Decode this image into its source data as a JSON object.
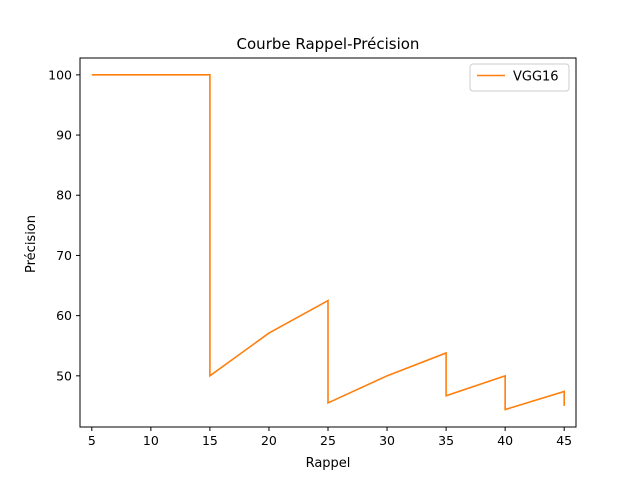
{
  "chart_data": {
    "type": "line",
    "title": "Courbe Rappel-Précision",
    "xlabel": "Rappel",
    "ylabel": "Précision",
    "xlim": [
      4.0,
      46.0
    ],
    "ylim": [
      41.5,
      102.8
    ],
    "xticks": [
      5,
      10,
      15,
      20,
      25,
      30,
      35,
      40,
      45
    ],
    "yticks": [
      50,
      60,
      70,
      80,
      90,
      100
    ],
    "grid": false,
    "legend_position": "upper right",
    "series": [
      {
        "name": "VGG16",
        "color": "#ff7f0e",
        "points": [
          [
            5.0,
            100.0
          ],
          [
            15.0,
            100.0
          ],
          [
            15.0,
            50.0
          ],
          [
            20.0,
            57.1
          ],
          [
            25.0,
            62.5
          ],
          [
            25.0,
            45.5
          ],
          [
            30.0,
            50.0
          ],
          [
            35.0,
            53.8
          ],
          [
            35.0,
            46.7
          ],
          [
            40.0,
            50.0
          ],
          [
            40.0,
            44.4
          ],
          [
            45.0,
            47.4
          ],
          [
            45.0,
            45.0
          ]
        ]
      }
    ]
  }
}
